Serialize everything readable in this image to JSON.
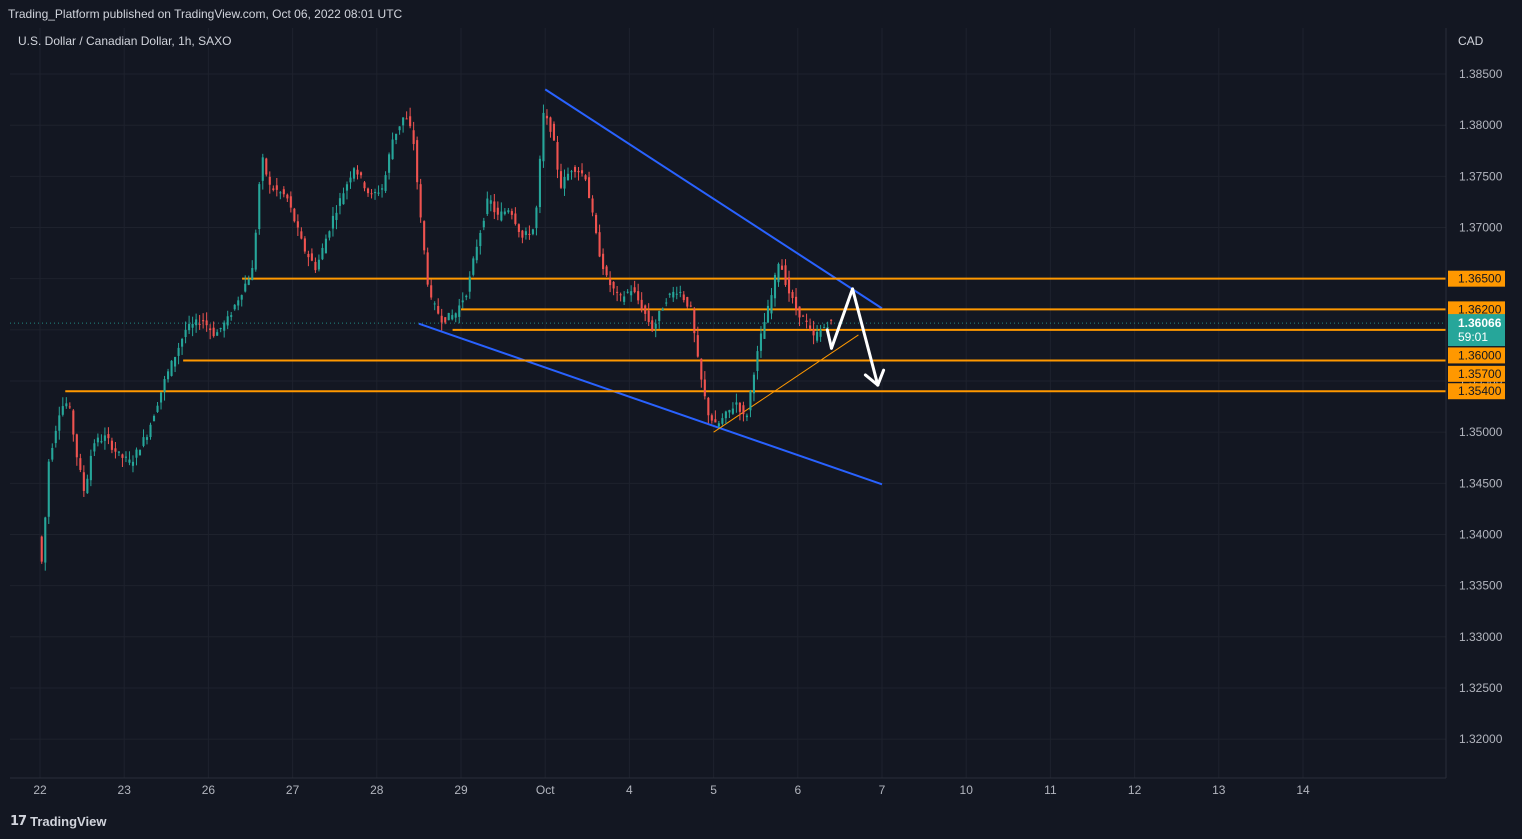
{
  "header": {
    "published": "Trading_Platform published on TradingView.com, Oct 06, 2022 08:01 UTC"
  },
  "footer": {
    "logo_mark": "17",
    "logo_text": "TradingView"
  },
  "chart_data": {
    "type": "candlestick",
    "title": "U.S. Dollar / Canadian Dollar, 1h, SAXO",
    "currency": "CAD",
    "y_ticks": [
      "1.38500",
      "1.38000",
      "1.37500",
      "1.37000",
      "1.36500",
      "1.36000",
      "1.35500",
      "1.35000",
      "1.34500",
      "1.34000",
      "1.33500",
      "1.33000",
      "1.32500",
      "1.32000"
    ],
    "ylim": [
      1.3162,
      1.3895
    ],
    "x_ticks": [
      {
        "label": "22",
        "day": 0
      },
      {
        "label": "23",
        "day": 1
      },
      {
        "label": "26",
        "day": 2
      },
      {
        "label": "27",
        "day": 3
      },
      {
        "label": "28",
        "day": 4
      },
      {
        "label": "29",
        "day": 5
      },
      {
        "label": "Oct",
        "day": 6
      },
      {
        "label": "4",
        "day": 7
      },
      {
        "label": "5",
        "day": 8
      },
      {
        "label": "6",
        "day": 9
      },
      {
        "label": "7",
        "day": 10
      },
      {
        "label": "10",
        "day": 11
      },
      {
        "label": "11",
        "day": 12
      },
      {
        "label": "12",
        "day": 13
      },
      {
        "label": "13",
        "day": 14
      },
      {
        "label": "14",
        "day": 15
      }
    ],
    "last_price": {
      "value": "1.36066",
      "countdown": "59:01",
      "price": 1.36066
    },
    "levels": [
      {
        "label": "1.36500",
        "price": 1.365,
        "from_day": 2.4
      },
      {
        "label": "1.36200",
        "price": 1.362,
        "from_day": 5.0
      },
      {
        "label": "1.36000",
        "price": 1.36,
        "from_day": 4.9
      },
      {
        "label": "1.35700",
        "price": 1.357,
        "from_day": 1.7
      },
      {
        "label": "1.35400",
        "price": 1.354,
        "from_day": 0.3
      }
    ],
    "level_tags": [
      {
        "label": "1.36500",
        "price": 1.365
      },
      {
        "label": "1.36200",
        "price": 1.362
      },
      {
        "label": "1.36000",
        "price": 1.3575
      },
      {
        "label": "1.35700",
        "price": 1.3557
      },
      {
        "label": "1.35400",
        "price": 1.354
      }
    ],
    "trendlines": [
      {
        "color": "#2962ff",
        "from": [
          6.0,
          1.3835
        ],
        "to": [
          10.0,
          1.3621
        ]
      },
      {
        "color": "#2962ff",
        "from": [
          4.5,
          1.3606
        ],
        "to": [
          10.0,
          1.3449
        ]
      },
      {
        "color": "#ff9800",
        "from": [
          8.0,
          1.35
        ],
        "to": [
          9.72,
          1.3595
        ]
      }
    ],
    "projection_arrows": [
      {
        "from": [
          9.35,
          1.36
        ],
        "to": [
          9.4,
          1.3582
        ]
      },
      {
        "from": [
          9.4,
          1.3582
        ],
        "to": [
          9.65,
          1.364
        ]
      },
      {
        "from": [
          9.65,
          1.364
        ],
        "to": [
          9.95,
          1.3546
        ]
      }
    ],
    "waypoints": [
      [
        0.0,
        1.3398
      ],
      [
        0.05,
        1.3368
      ],
      [
        0.12,
        1.347
      ],
      [
        0.25,
        1.352
      ],
      [
        0.32,
        1.353
      ],
      [
        0.38,
        1.352
      ],
      [
        0.45,
        1.348
      ],
      [
        0.55,
        1.344
      ],
      [
        0.65,
        1.349
      ],
      [
        0.8,
        1.3495
      ],
      [
        0.95,
        1.3478
      ],
      [
        1.1,
        1.347
      ],
      [
        1.3,
        1.35
      ],
      [
        1.5,
        1.355
      ],
      [
        1.75,
        1.36
      ],
      [
        1.95,
        1.361
      ],
      [
        2.1,
        1.3595
      ],
      [
        2.25,
        1.361
      ],
      [
        2.4,
        1.3635
      ],
      [
        2.55,
        1.366
      ],
      [
        2.65,
        1.377
      ],
      [
        2.75,
        1.374
      ],
      [
        2.95,
        1.373
      ],
      [
        3.15,
        1.368
      ],
      [
        3.3,
        1.366
      ],
      [
        3.5,
        1.371
      ],
      [
        3.75,
        1.376
      ],
      [
        3.95,
        1.373
      ],
      [
        4.1,
        1.374
      ],
      [
        4.2,
        1.3785
      ],
      [
        4.35,
        1.381
      ],
      [
        4.45,
        1.379
      ],
      [
        4.55,
        1.37
      ],
      [
        4.65,
        1.363
      ],
      [
        4.8,
        1.361
      ],
      [
        4.95,
        1.3615
      ],
      [
        5.1,
        1.364
      ],
      [
        5.2,
        1.368
      ],
      [
        5.35,
        1.373
      ],
      [
        5.45,
        1.371
      ],
      [
        5.6,
        1.372
      ],
      [
        5.75,
        1.369
      ],
      [
        5.9,
        1.37
      ],
      [
        6.0,
        1.381
      ],
      [
        6.1,
        1.3795
      ],
      [
        6.2,
        1.374
      ],
      [
        6.35,
        1.376
      ],
      [
        6.5,
        1.375
      ],
      [
        6.65,
        1.368
      ],
      [
        6.75,
        1.365
      ],
      [
        6.9,
        1.363
      ],
      [
        7.05,
        1.364
      ],
      [
        7.15,
        1.3625
      ],
      [
        7.3,
        1.36
      ],
      [
        7.45,
        1.363
      ],
      [
        7.6,
        1.364
      ],
      [
        7.75,
        1.362
      ],
      [
        7.85,
        1.356
      ],
      [
        7.95,
        1.352
      ],
      [
        8.05,
        1.3505
      ],
      [
        8.2,
        1.352
      ],
      [
        8.3,
        1.353
      ],
      [
        8.4,
        1.351
      ],
      [
        8.5,
        1.356
      ],
      [
        8.6,
        1.36
      ],
      [
        8.7,
        1.363
      ],
      [
        8.8,
        1.367
      ],
      [
        8.9,
        1.364
      ],
      [
        9.0,
        1.362
      ],
      [
        9.1,
        1.361
      ],
      [
        9.2,
        1.3592
      ],
      [
        9.3,
        1.36
      ],
      [
        9.38,
        1.3607
      ]
    ]
  }
}
